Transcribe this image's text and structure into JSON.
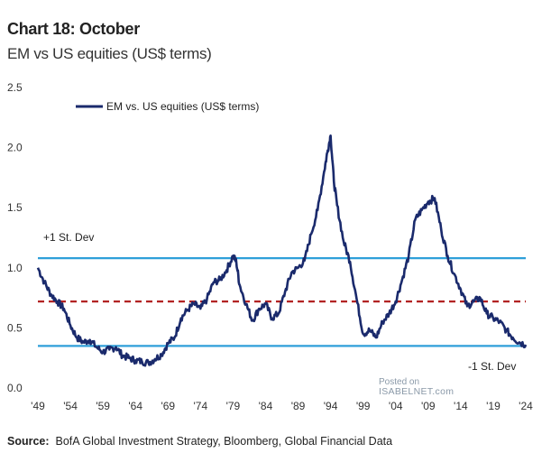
{
  "header": {
    "title": "Chart 18: October",
    "subtitle": "EM vs US equities (US$ terms)"
  },
  "footer": {
    "source_label": "Source:",
    "source_text": "BofA Global Investment Strategy, Bloomberg, Global Financial Data"
  },
  "watermark": {
    "line1": "Posted on",
    "line2": "ISABELNET.com"
  },
  "colors": {
    "series": "#1a2a6c",
    "band": "#2e9fd9",
    "mean": "#b22222",
    "text": "#222222"
  },
  "chart_data": {
    "type": "line",
    "title": "Chart 18: October",
    "subtitle": "EM vs US equities (US$ terms)",
    "xlabel": "",
    "ylabel": "",
    "xlim": [
      1949,
      2024
    ],
    "ylim": [
      0.0,
      2.5
    ],
    "x_tick_labels": [
      "'49",
      "'54",
      "'59",
      "'64",
      "'69",
      "'74",
      "'79",
      "'84",
      "'89",
      "'94",
      "'99",
      "'04",
      "'09",
      "'14",
      "'19",
      "'24"
    ],
    "x_tick_values": [
      1949,
      1954,
      1959,
      1964,
      1969,
      1974,
      1979,
      1984,
      1989,
      1994,
      1999,
      2004,
      2009,
      2014,
      2019,
      2024
    ],
    "y_tick_labels": [
      "0.0",
      "0.5",
      "1.0",
      "1.5",
      "2.0",
      "2.5"
    ],
    "y_tick_values": [
      0.0,
      0.5,
      1.0,
      1.5,
      2.0,
      2.5
    ],
    "legend": {
      "label": "EM vs. US equities (US$ terms)",
      "placement": "top-left"
    },
    "series": [
      {
        "name": "EM vs. US equities (US$ terms)",
        "x": [
          1949,
          1950,
          1951,
          1952,
          1953,
          1954,
          1955,
          1956,
          1957,
          1958,
          1959,
          1960,
          1961,
          1962,
          1963,
          1964,
          1965,
          1966,
          1967,
          1968,
          1969,
          1970,
          1971,
          1972,
          1973,
          1974,
          1975,
          1976,
          1977,
          1978,
          1979,
          1979.5,
          1980,
          1981,
          1982,
          1983,
          1984,
          1985,
          1986,
          1987,
          1988,
          1989,
          1990,
          1991,
          1992,
          1993,
          1993.5,
          1994,
          1994.5,
          1995,
          1996,
          1997,
          1998,
          1999,
          2000,
          2001,
          2002,
          2003,
          2004,
          2005,
          2006,
          2007,
          2008,
          2009,
          2010,
          2011,
          2012,
          2013,
          2014,
          2015,
          2016,
          2017,
          2018,
          2019,
          2020,
          2021,
          2022,
          2023,
          2024
        ],
        "values": [
          1.0,
          0.88,
          0.78,
          0.72,
          0.66,
          0.52,
          0.42,
          0.38,
          0.4,
          0.34,
          0.3,
          0.32,
          0.34,
          0.27,
          0.25,
          0.23,
          0.22,
          0.21,
          0.24,
          0.28,
          0.37,
          0.42,
          0.58,
          0.65,
          0.7,
          0.66,
          0.74,
          0.88,
          0.9,
          0.98,
          1.1,
          1.05,
          0.86,
          0.7,
          0.56,
          0.66,
          0.7,
          0.58,
          0.62,
          0.8,
          0.96,
          1.0,
          1.06,
          1.28,
          1.48,
          1.8,
          1.96,
          2.1,
          1.72,
          1.52,
          1.22,
          1.05,
          0.74,
          0.45,
          0.48,
          0.42,
          0.55,
          0.62,
          0.72,
          0.9,
          1.1,
          1.4,
          1.48,
          1.55,
          1.58,
          1.32,
          1.1,
          0.95,
          0.82,
          0.68,
          0.72,
          0.75,
          0.62,
          0.58,
          0.55,
          0.48,
          0.42,
          0.38,
          0.36
        ]
      }
    ],
    "reference_lines": [
      {
        "name": "+1 St. Dev",
        "y": 1.08,
        "style": "solid"
      },
      {
        "name": "mean",
        "y": 0.72,
        "style": "dashed"
      },
      {
        "name": "-1 St. Dev",
        "y": 0.35,
        "style": "solid"
      }
    ],
    "annotations": [
      "+1 St. Dev",
      "-1 St. Dev"
    ]
  }
}
